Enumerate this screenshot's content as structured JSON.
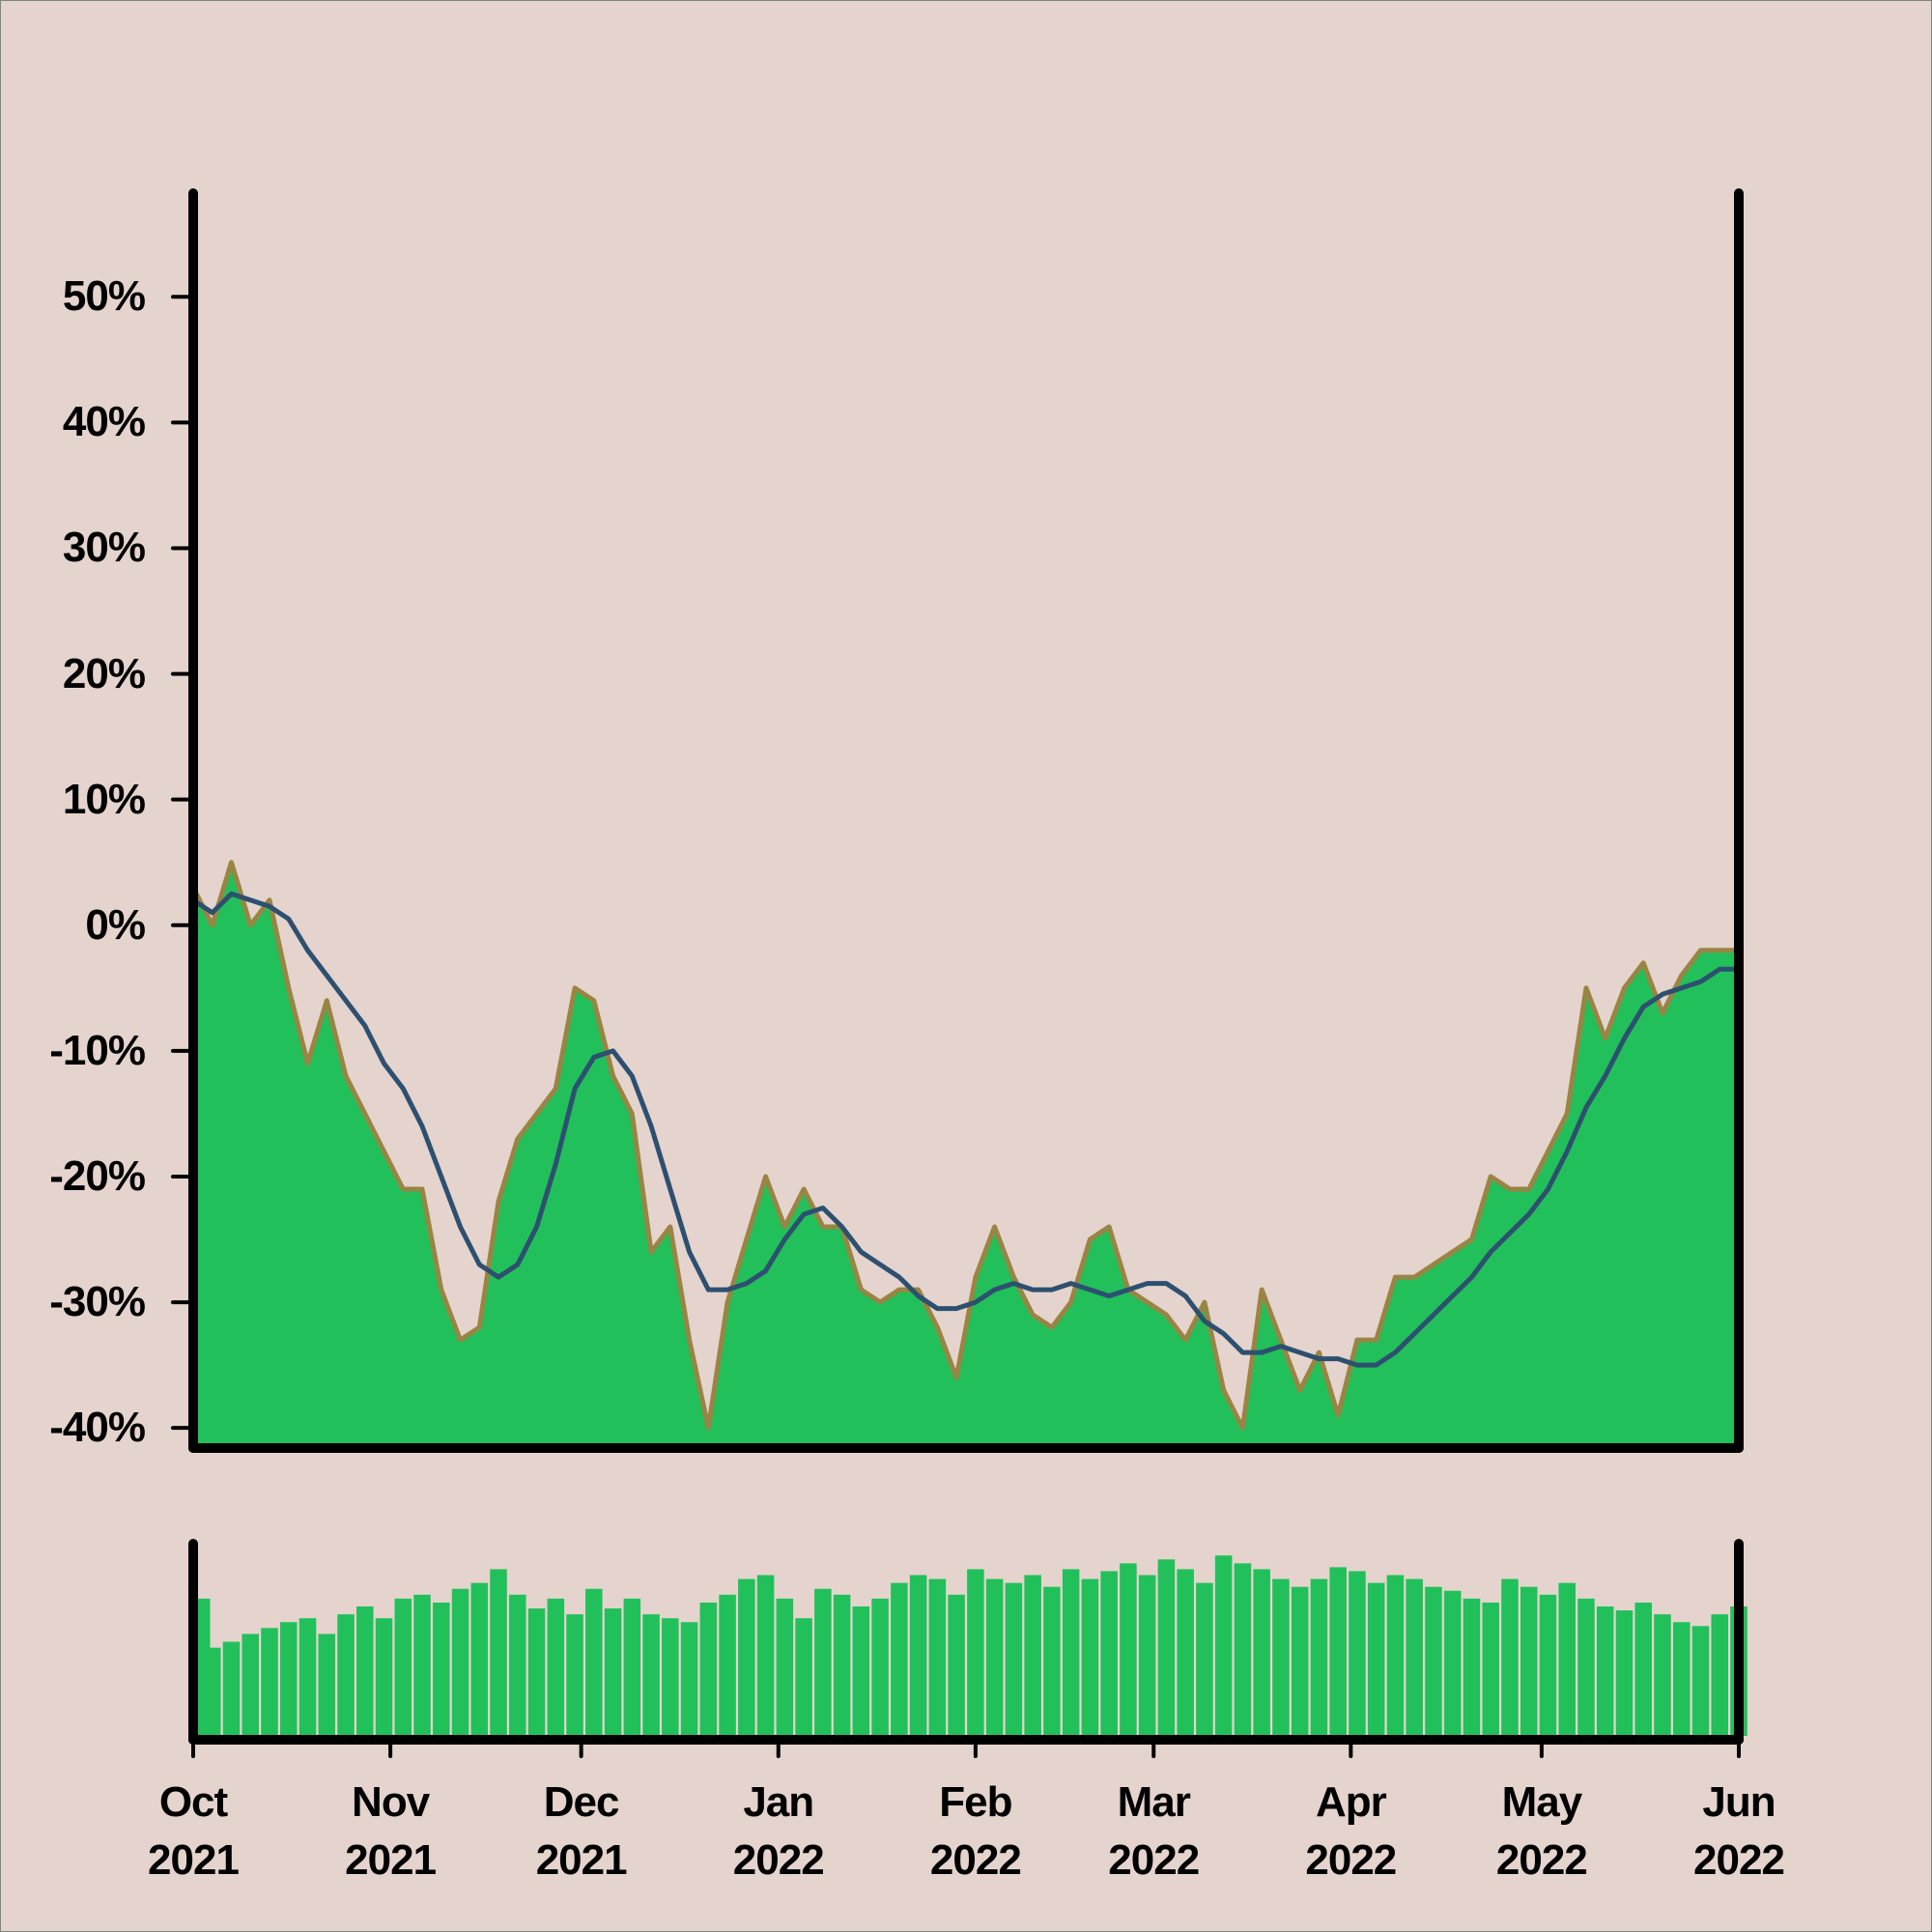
{
  "chart_data": {
    "type": "area",
    "xlim": [
      "2021-10-01",
      "2022-06-01"
    ],
    "xticks": [
      {
        "value": "2021-10-01",
        "label": "Oct\n2021"
      },
      {
        "value": "2021-11-01",
        "label": "Nov\n2021"
      },
      {
        "value": "2021-12-01",
        "label": "Dec\n2021"
      },
      {
        "value": "2022-01-01",
        "label": "Jan\n2022"
      },
      {
        "value": "2022-02-01",
        "label": "Feb\n2022"
      },
      {
        "value": "2022-03-01",
        "label": "Mar\n2022"
      },
      {
        "value": "2022-04-01",
        "label": "Apr\n2022"
      },
      {
        "value": "2022-05-01",
        "label": "May\n2022"
      },
      {
        "value": "2022-06-01",
        "label": "Jun\n2022"
      }
    ],
    "ylim": [
      -41.6,
      58.4
    ],
    "yticks": [
      {
        "value": -40,
        "label": "-40%"
      },
      {
        "value": -30,
        "label": "-30%"
      },
      {
        "value": -20,
        "label": "-20%"
      },
      {
        "value": -10,
        "label": "-10%"
      },
      {
        "value": 0,
        "label": "0%"
      },
      {
        "value": 10,
        "label": "10%"
      },
      {
        "value": 20,
        "label": "20%"
      },
      {
        "value": 30,
        "label": "30%"
      },
      {
        "value": 40,
        "label": "40%"
      },
      {
        "value": 50,
        "label": "50%"
      }
    ],
    "y2lim": [
      0,
      100
    ],
    "x": [
      "2021-10-01",
      "2021-10-04",
      "2021-10-07",
      "2021-10-10",
      "2021-10-13",
      "2021-10-16",
      "2021-10-19",
      "2021-10-22",
      "2021-10-25",
      "2021-10-28",
      "2021-10-31",
      "2021-11-03",
      "2021-11-06",
      "2021-11-09",
      "2021-11-12",
      "2021-11-15",
      "2021-11-18",
      "2021-11-21",
      "2021-11-24",
      "2021-11-27",
      "2021-11-30",
      "2021-12-03",
      "2021-12-06",
      "2021-12-09",
      "2021-12-12",
      "2021-12-15",
      "2021-12-18",
      "2021-12-21",
      "2021-12-24",
      "2021-12-27",
      "2021-12-30",
      "2022-01-02",
      "2022-01-05",
      "2022-01-08",
      "2022-01-11",
      "2022-01-14",
      "2022-01-17",
      "2022-01-20",
      "2022-01-23",
      "2022-01-26",
      "2022-01-29",
      "2022-02-01",
      "2022-02-04",
      "2022-02-07",
      "2022-02-10",
      "2022-02-13",
      "2022-02-16",
      "2022-02-19",
      "2022-02-22",
      "2022-02-25",
      "2022-02-28",
      "2022-03-03",
      "2022-03-06",
      "2022-03-09",
      "2022-03-12",
      "2022-03-15",
      "2022-03-18",
      "2022-03-21",
      "2022-03-24",
      "2022-03-27",
      "2022-03-30",
      "2022-04-02",
      "2022-04-05",
      "2022-04-08",
      "2022-04-11",
      "2022-04-14",
      "2022-04-17",
      "2022-04-20",
      "2022-04-23",
      "2022-04-26",
      "2022-04-29",
      "2022-05-02",
      "2022-05-05",
      "2022-05-08",
      "2022-05-11",
      "2022-05-14",
      "2022-05-17",
      "2022-05-20",
      "2022-05-23",
      "2022-05-26",
      "2022-05-29",
      "2022-06-01"
    ],
    "series": [
      {
        "type": "area",
        "color": "#22c05a",
        "edge_color": "#9a8444",
        "values": [
          3,
          0,
          5,
          0,
          2,
          -5,
          -11,
          -6,
          -12,
          -15,
          -18,
          -21,
          -21,
          -29,
          -33,
          -32,
          -22,
          -17,
          -15,
          -13,
          -5,
          -6,
          -12,
          -15,
          -26,
          -24,
          -33,
          -40,
          -30,
          -25,
          -20,
          -24,
          -21,
          -24,
          -24,
          -29,
          -30,
          -29,
          -29,
          -32,
          -36,
          -28,
          -24,
          -28,
          -31,
          -32,
          -30,
          -25,
          -24,
          -29,
          -30,
          -31,
          -33,
          -30,
          -37,
          -40,
          -29,
          -33,
          -37,
          -34,
          -39,
          -33,
          -33,
          -28,
          -28,
          -27,
          -26,
          -25,
          -20,
          -21,
          -21,
          -18,
          -15,
          -5,
          -9,
          -5,
          -3,
          -7,
          -4,
          -2,
          -2,
          -2
        ]
      },
      {
        "type": "line",
        "color": "#2d5070",
        "values": [
          2,
          1,
          2.5,
          2,
          1.5,
          0.5,
          -2,
          -4,
          -6,
          -8,
          -11,
          -13,
          -16,
          -20,
          -24,
          -27,
          -28,
          -27,
          -24,
          -19,
          -13,
          -10.5,
          -10,
          -12,
          -16,
          -21,
          -26,
          -29,
          -29,
          -28.5,
          -27.5,
          -25,
          -23,
          -22.5,
          -24,
          -26,
          -27,
          -28,
          -29.5,
          -30.5,
          -30.5,
          -30,
          -29,
          -28.5,
          -29,
          -29,
          -28.5,
          -29,
          -29.5,
          -29,
          -28.5,
          -28.5,
          -29.5,
          -31.5,
          -32.5,
          -34,
          -34,
          -33.5,
          -34,
          -34.5,
          -34.5,
          -35,
          -35,
          -34,
          -32.5,
          -31,
          -29.5,
          -28,
          -26,
          -24.5,
          -23,
          -21,
          -18,
          -14.5,
          -12,
          -9,
          -6.5,
          -5.5,
          -5,
          -4.5,
          -3.5,
          -3.5
        ]
      },
      {
        "type": "bar",
        "axis": "y2",
        "color": "#22c05a",
        "values": [
          70,
          45,
          48,
          52,
          55,
          58,
          60,
          52,
          62,
          66,
          60,
          70,
          72,
          68,
          75,
          78,
          85,
          72,
          65,
          70,
          62,
          75,
          65,
          70,
          62,
          60,
          58,
          68,
          72,
          80,
          82,
          70,
          60,
          75,
          72,
          66,
          70,
          78,
          82,
          80,
          72,
          85,
          80,
          78,
          82,
          76,
          85,
          80,
          84,
          88,
          82,
          90,
          85,
          78,
          92,
          88,
          85,
          80,
          76,
          80,
          86,
          84,
          78,
          82,
          80,
          76,
          74,
          70,
          68,
          80,
          76,
          72,
          78,
          70,
          66,
          64,
          68,
          62,
          58,
          56,
          62,
          66
        ]
      }
    ]
  }
}
